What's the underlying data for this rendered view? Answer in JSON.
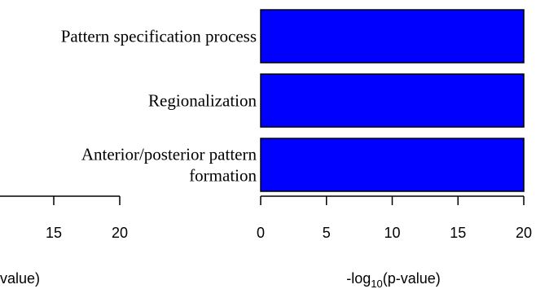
{
  "chart_data": [
    {
      "type": "bar",
      "orientation": "horizontal",
      "note_partial": "left panel cropped at image edge",
      "xlabel_prefix": "",
      "xlabel_suffix": "value)",
      "xlim": [
        0,
        20
      ],
      "x_ticks": [
        "15",
        "20"
      ],
      "categories": [],
      "values": []
    },
    {
      "type": "bar",
      "orientation": "horizontal",
      "categories": [
        [
          "Pattern specification process"
        ],
        [
          "Regionalization"
        ],
        [
          "Anterior/posterior pattern",
          "formation"
        ]
      ],
      "values": [
        20,
        20,
        20
      ],
      "bar_color": "#0000ff",
      "xlim": [
        0,
        20
      ],
      "x_ticks": [
        "0",
        "5",
        "10",
        "15",
        "20"
      ],
      "xlabel": {
        "prefix": "-log",
        "subscript": "10",
        "suffix": "(p-value)"
      }
    }
  ]
}
